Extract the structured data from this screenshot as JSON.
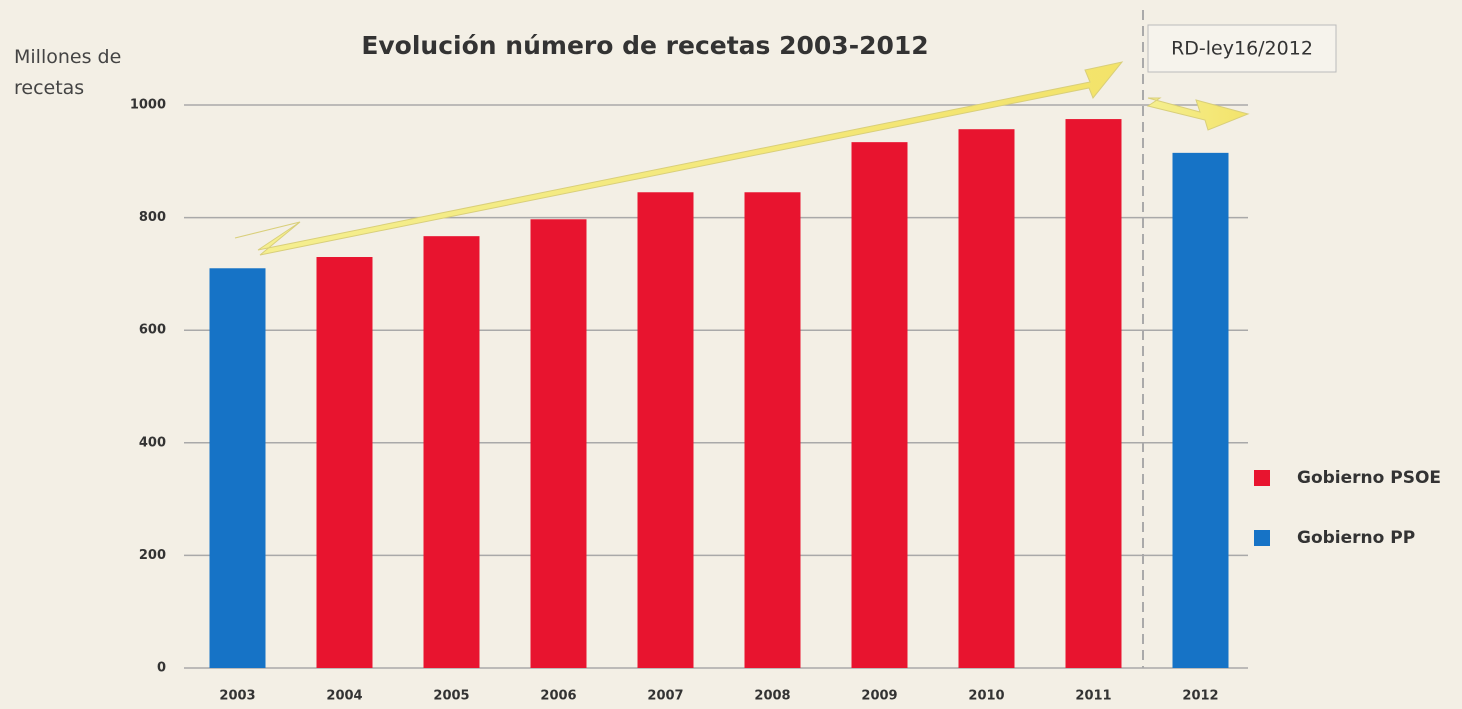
{
  "chart_data": {
    "type": "bar",
    "title": "Evolución número de recetas 2003-2012",
    "y_label": "Millones de recetas",
    "annotation": "RD-ley16/2012",
    "categories": [
      "2003",
      "2004",
      "2005",
      "2006",
      "2007",
      "2008",
      "2009",
      "2010",
      "2011",
      "2012"
    ],
    "series": [
      {
        "name": "Gobierno PSOE",
        "color": "#e8142f",
        "values": [
          null,
          730,
          767,
          797,
          845,
          845,
          934,
          957,
          975,
          null
        ]
      },
      {
        "name": "Gobierno PP",
        "color": "#1673c6",
        "values": [
          710,
          null,
          null,
          null,
          null,
          null,
          null,
          null,
          null,
          915
        ]
      }
    ],
    "ylim": [
      0,
      1000
    ],
    "yticks": [
      0,
      200,
      400,
      600,
      800,
      1000
    ],
    "grid": true,
    "legend": "right"
  }
}
